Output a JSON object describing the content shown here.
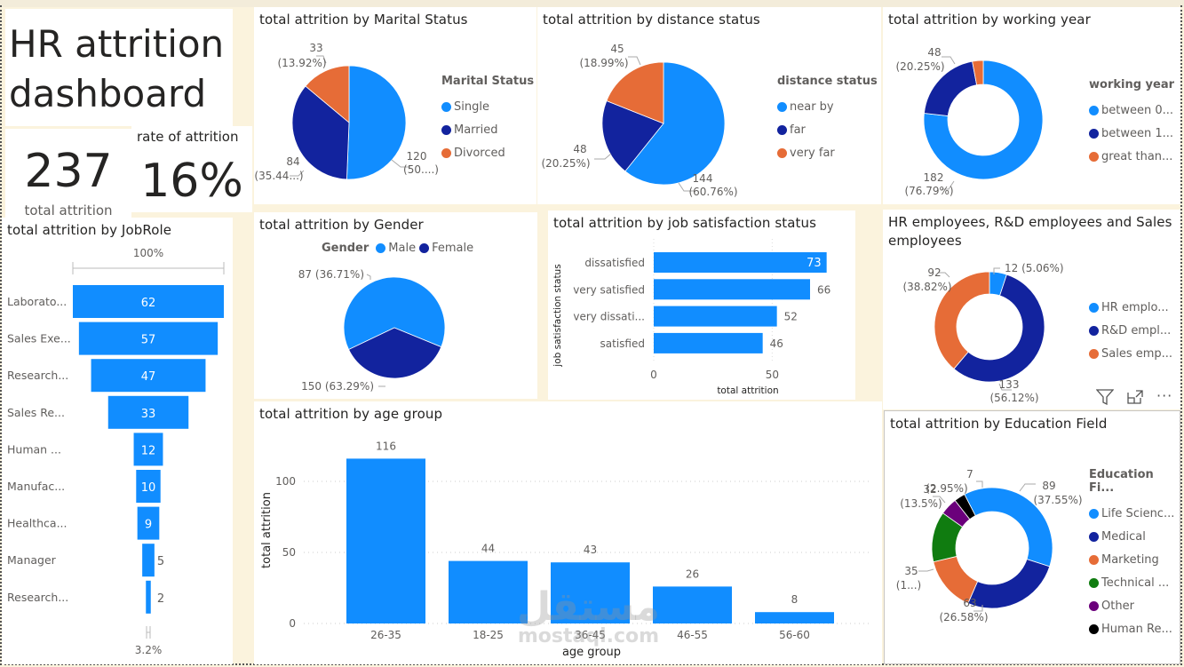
{
  "header": {
    "title_line1": "HR attrition",
    "title_line2": "dashboard"
  },
  "kpis": {
    "total_value": "237",
    "total_label": "total attrition",
    "rate_label": "rate of attrition",
    "rate_value": "16%"
  },
  "colors": {
    "blue": "#118dff",
    "navy": "#12239e",
    "orange": "#e66c37",
    "green": "#107c10",
    "purple": "#6b007b",
    "black": "#000000",
    "background": "#fbf3dd"
  },
  "visual_actions": {
    "filter_icon": "filter-icon",
    "focus_icon": "focus-mode-icon",
    "more_icon": "more-options-icon",
    "more_label": "···"
  },
  "chart_data": [
    {
      "id": "jobrole",
      "type": "bar",
      "subtype": "funnel",
      "title": "total attrition by JobRole",
      "top_label": "100%",
      "bottom_label": "3.2%",
      "categories": [
        "Laborato...",
        "Sales Exe...",
        "Research...",
        "Sales Re...",
        "Human ...",
        "Manufac...",
        "Healthca...",
        "Manager",
        "Research..."
      ],
      "values": [
        62,
        57,
        47,
        33,
        12,
        10,
        9,
        5,
        2
      ]
    },
    {
      "id": "marital",
      "type": "pie",
      "title": "total attrition by Marital Status",
      "legend_title": "Marital Status",
      "categories": [
        "Single",
        "Married",
        "Divorced"
      ],
      "values": [
        120,
        84,
        33
      ],
      "labels": [
        [
          "120",
          "(50....)"
        ],
        [
          "84",
          "(35.44...)"
        ],
        [
          "33",
          "(13.92%)"
        ]
      ]
    },
    {
      "id": "distance",
      "type": "pie",
      "title": "total attrition by distance status",
      "legend_title": "distance status",
      "categories": [
        "near by",
        "far",
        "very far"
      ],
      "values": [
        144,
        48,
        45
      ],
      "labels": [
        [
          "144",
          "(60.76%)"
        ],
        [
          "48",
          "(20.25%)"
        ],
        [
          "45",
          "(18.99%)"
        ]
      ]
    },
    {
      "id": "working",
      "type": "pie",
      "subtype": "donut",
      "title": "total attrition by working year",
      "legend_title": "working year",
      "categories": [
        "between 0...",
        "between 1...",
        "great than..."
      ],
      "values": [
        182,
        48,
        7
      ],
      "labels": [
        [
          "182",
          "(76.79%)"
        ],
        [
          "48",
          "(20.25%)"
        ],
        [
          "",
          ""
        ]
      ]
    },
    {
      "id": "gender",
      "type": "pie",
      "title": "total attrition by Gender",
      "legend_title": "Gender",
      "categories": [
        "Male",
        "Female"
      ],
      "values": [
        150,
        87
      ],
      "labels": [
        "150 (63.29%)",
        "87 (36.71%)"
      ]
    },
    {
      "id": "jobsat",
      "type": "bar",
      "orientation": "horizontal",
      "title": "total attrition by job satisfaction status",
      "xlabel": "total attrition",
      "ylabel": "job satisfaction status",
      "categories": [
        "dissatisfied",
        "very satisfied",
        "very dissati...",
        "satisfied"
      ],
      "values": [
        73,
        66,
        52,
        46
      ],
      "xticks": [
        0,
        50
      ],
      "xlim": [
        0,
        75
      ]
    },
    {
      "id": "depts",
      "type": "pie",
      "subtype": "donut",
      "title": "HR employees, R&D employees and Sales employees",
      "title_line1": "HR employees, R&D employees and Sales",
      "title_line2": "employees",
      "categories": [
        "HR emplo...",
        "R&D empl...",
        "Sales emp..."
      ],
      "values": [
        12,
        133,
        92
      ],
      "labels": [
        [
          "12 (5.06%)",
          ""
        ],
        [
          "133",
          "(56.12%)"
        ],
        [
          "92",
          "(38.82%)"
        ]
      ]
    },
    {
      "id": "age",
      "type": "bar",
      "title": "total attrition by age group",
      "xlabel": "age group",
      "ylabel": "total attrition",
      "categories": [
        "26-35",
        "18-25",
        "36-45",
        "46-55",
        "56-60"
      ],
      "values": [
        116,
        44,
        43,
        26,
        8
      ],
      "yticks": [
        0,
        50,
        100
      ],
      "ylim": [
        0,
        125
      ],
      "grid": true
    },
    {
      "id": "education",
      "type": "pie",
      "subtype": "donut",
      "title": "total attrition by Education Field",
      "legend_title": "Education Fi...",
      "categories": [
        "Life Scienc...",
        "Medical",
        "Marketing",
        "Technical ...",
        "Other",
        "Human Re..."
      ],
      "values": [
        89,
        63,
        35,
        32,
        11,
        7
      ],
      "labels": [
        [
          "89",
          "(37.55%)"
        ],
        [
          "63",
          "(26.58%)"
        ],
        [
          "35",
          "(1...)"
        ],
        [
          "32",
          "(13.5%)"
        ],
        [
          "",
          ""
        ],
        [
          "7",
          "(2.95%)"
        ]
      ]
    }
  ],
  "watermark": {
    "arabic": "مستقل",
    "latin": "mostaql.com"
  }
}
